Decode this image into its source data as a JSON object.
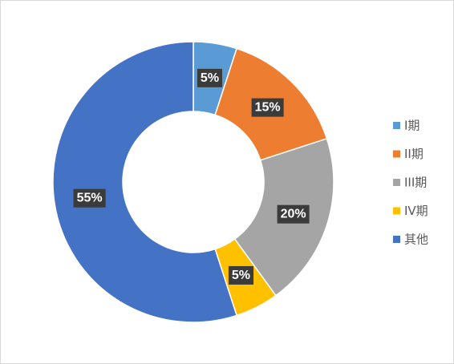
{
  "chart_data": {
    "type": "donut",
    "categories": [
      "I期",
      "II期",
      "III期",
      "IV期",
      "其他"
    ],
    "values": [
      5,
      15,
      20,
      5,
      55
    ],
    "value_labels": [
      "5%",
      "15%",
      "20%",
      "5%",
      "55%"
    ],
    "colors": [
      "#5b9bd5",
      "#ed7d31",
      "#a5a5a5",
      "#ffc000",
      "#4472c4"
    ],
    "legend": "right"
  }
}
